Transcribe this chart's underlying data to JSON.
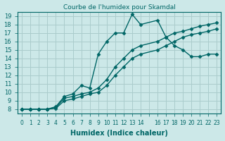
{
  "title": "Courbe de l'humidex pour Skamdal",
  "xlabel": "Humidex (Indice chaleur)",
  "ylabel": "",
  "xlim": [
    -0.5,
    23.5
  ],
  "ylim": [
    7.5,
    19.5
  ],
  "xticks": [
    0,
    1,
    2,
    3,
    4,
    5,
    6,
    7,
    8,
    9,
    10,
    11,
    12,
    13,
    14,
    15,
    16,
    17,
    18,
    19,
    20,
    21,
    22,
    23
  ],
  "xtick_labels": [
    "0",
    "1",
    "2",
    "3",
    "4",
    "5",
    "6",
    "7",
    "8",
    "9",
    "10",
    "11",
    "12",
    "13",
    "14",
    "",
    "16",
    "17",
    "18",
    "19",
    "20",
    "21",
    "22",
    "23"
  ],
  "yticks": [
    8,
    9,
    10,
    11,
    12,
    13,
    14,
    15,
    16,
    17,
    18,
    19
  ],
  "bg_color": "#cce8e8",
  "grid_color": "#aacccc",
  "line_color": "#006666",
  "lines": [
    {
      "x": [
        0,
        1,
        2,
        3,
        4,
        5,
        6,
        7,
        8,
        9,
        10,
        11,
        12,
        13,
        14,
        16,
        17,
        18,
        19,
        20,
        21,
        22,
        23
      ],
      "y": [
        8,
        8,
        8,
        8,
        8.3,
        9.5,
        9.8,
        10.8,
        10.5,
        14.5,
        16.0,
        17.0,
        17.0,
        19.2,
        18.0,
        18.5,
        16.5,
        15.5,
        15.0,
        14.2,
        14.2,
        14.5,
        14.5
      ]
    },
    {
      "x": [
        0,
        1,
        2,
        3,
        4,
        5,
        6,
        7,
        8,
        9,
        10,
        11,
        12,
        13,
        14,
        16,
        17,
        18,
        19,
        20,
        21,
        22,
        23
      ],
      "y": [
        8,
        8,
        8,
        8,
        8.2,
        9.3,
        9.5,
        9.8,
        10.0,
        10.5,
        11.5,
        13.0,
        14.0,
        15.0,
        15.5,
        16.0,
        16.5,
        17.0,
        17.2,
        17.5,
        17.8,
        18.0,
        18.2
      ]
    },
    {
      "x": [
        0,
        1,
        2,
        3,
        4,
        5,
        6,
        7,
        8,
        9,
        10,
        11,
        12,
        13,
        14,
        16,
        17,
        18,
        19,
        20,
        21,
        22,
        23
      ],
      "y": [
        8,
        8,
        8,
        8,
        8.1,
        9.0,
        9.2,
        9.5,
        9.8,
        10.0,
        10.8,
        12.0,
        13.0,
        14.0,
        14.5,
        15.0,
        15.5,
        16.0,
        16.5,
        16.8,
        17.0,
        17.2,
        17.5
      ]
    }
  ]
}
